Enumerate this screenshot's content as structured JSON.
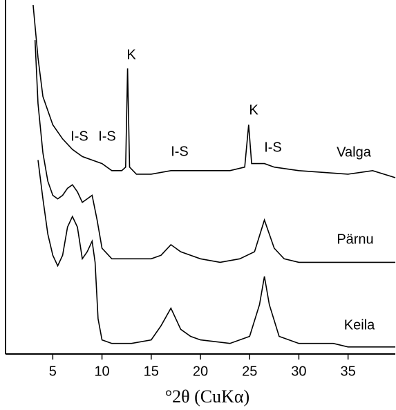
{
  "chart_data": {
    "type": "line",
    "x_label": "°2θ (CuKα)",
    "xlim": [
      0.2,
      39.8
    ],
    "xticks": [
      5,
      10,
      15,
      20,
      25,
      30,
      35
    ],
    "ylim": [
      0,
      100
    ],
    "annotations": [
      "K",
      "I-S",
      "I-S",
      "I-S",
      "K",
      "I-S"
    ],
    "series": [
      {
        "name": "Valga",
        "color": "#000000",
        "x": [
          3,
          3.5,
          4,
          5,
          6,
          7,
          8,
          9,
          10,
          11,
          12,
          12.4,
          12.6,
          12.8,
          13.5,
          15,
          17,
          20,
          23,
          24.5,
          24.9,
          25.2,
          26,
          26.5,
          27.5,
          30,
          35,
          37.5,
          39.8
        ],
        "values": [
          99,
          84,
          73,
          65,
          61,
          58,
          56,
          55,
          54,
          52,
          52,
          53,
          81,
          53,
          51,
          51,
          52,
          52,
          52,
          53,
          65,
          54,
          54,
          54,
          53,
          52,
          51,
          52,
          50
        ]
      },
      {
        "name": "Pärnu",
        "color": "#000000",
        "x": [
          3.2,
          3.5,
          4,
          4.5,
          5,
          5.5,
          6,
          6.5,
          7,
          7.5,
          8,
          8.5,
          9,
          9.5,
          10,
          11,
          13,
          15,
          16,
          17,
          18,
          19,
          20,
          22,
          24,
          25.5,
          26.5,
          27.5,
          28.5,
          30,
          35,
          39.8
        ],
        "values": [
          89,
          71,
          57,
          49,
          45,
          44,
          45,
          47,
          48,
          46,
          43,
          44,
          45,
          38,
          30,
          27,
          27,
          27,
          28,
          31,
          29,
          28,
          27,
          26,
          27,
          29,
          38,
          30,
          27,
          26,
          26,
          26
        ]
      },
      {
        "name": "Keila",
        "color": "#000000",
        "x": [
          3.5,
          4,
          4.5,
          5,
          5.5,
          6,
          6.5,
          7,
          7.5,
          8,
          8.5,
          9,
          9.3,
          9.6,
          10,
          11,
          13,
          15,
          16,
          17,
          18,
          19,
          20,
          23,
          25,
          26,
          26.5,
          27,
          28,
          30,
          33.5,
          35,
          39.8
        ],
        "values": [
          55,
          44,
          34,
          28,
          25,
          28,
          36,
          39,
          36,
          27,
          29,
          32,
          26,
          10,
          4,
          3,
          3,
          4,
          8,
          13,
          7,
          5,
          4,
          3,
          5,
          14,
          22,
          14,
          5,
          3,
          3,
          2,
          2
        ]
      }
    ]
  }
}
